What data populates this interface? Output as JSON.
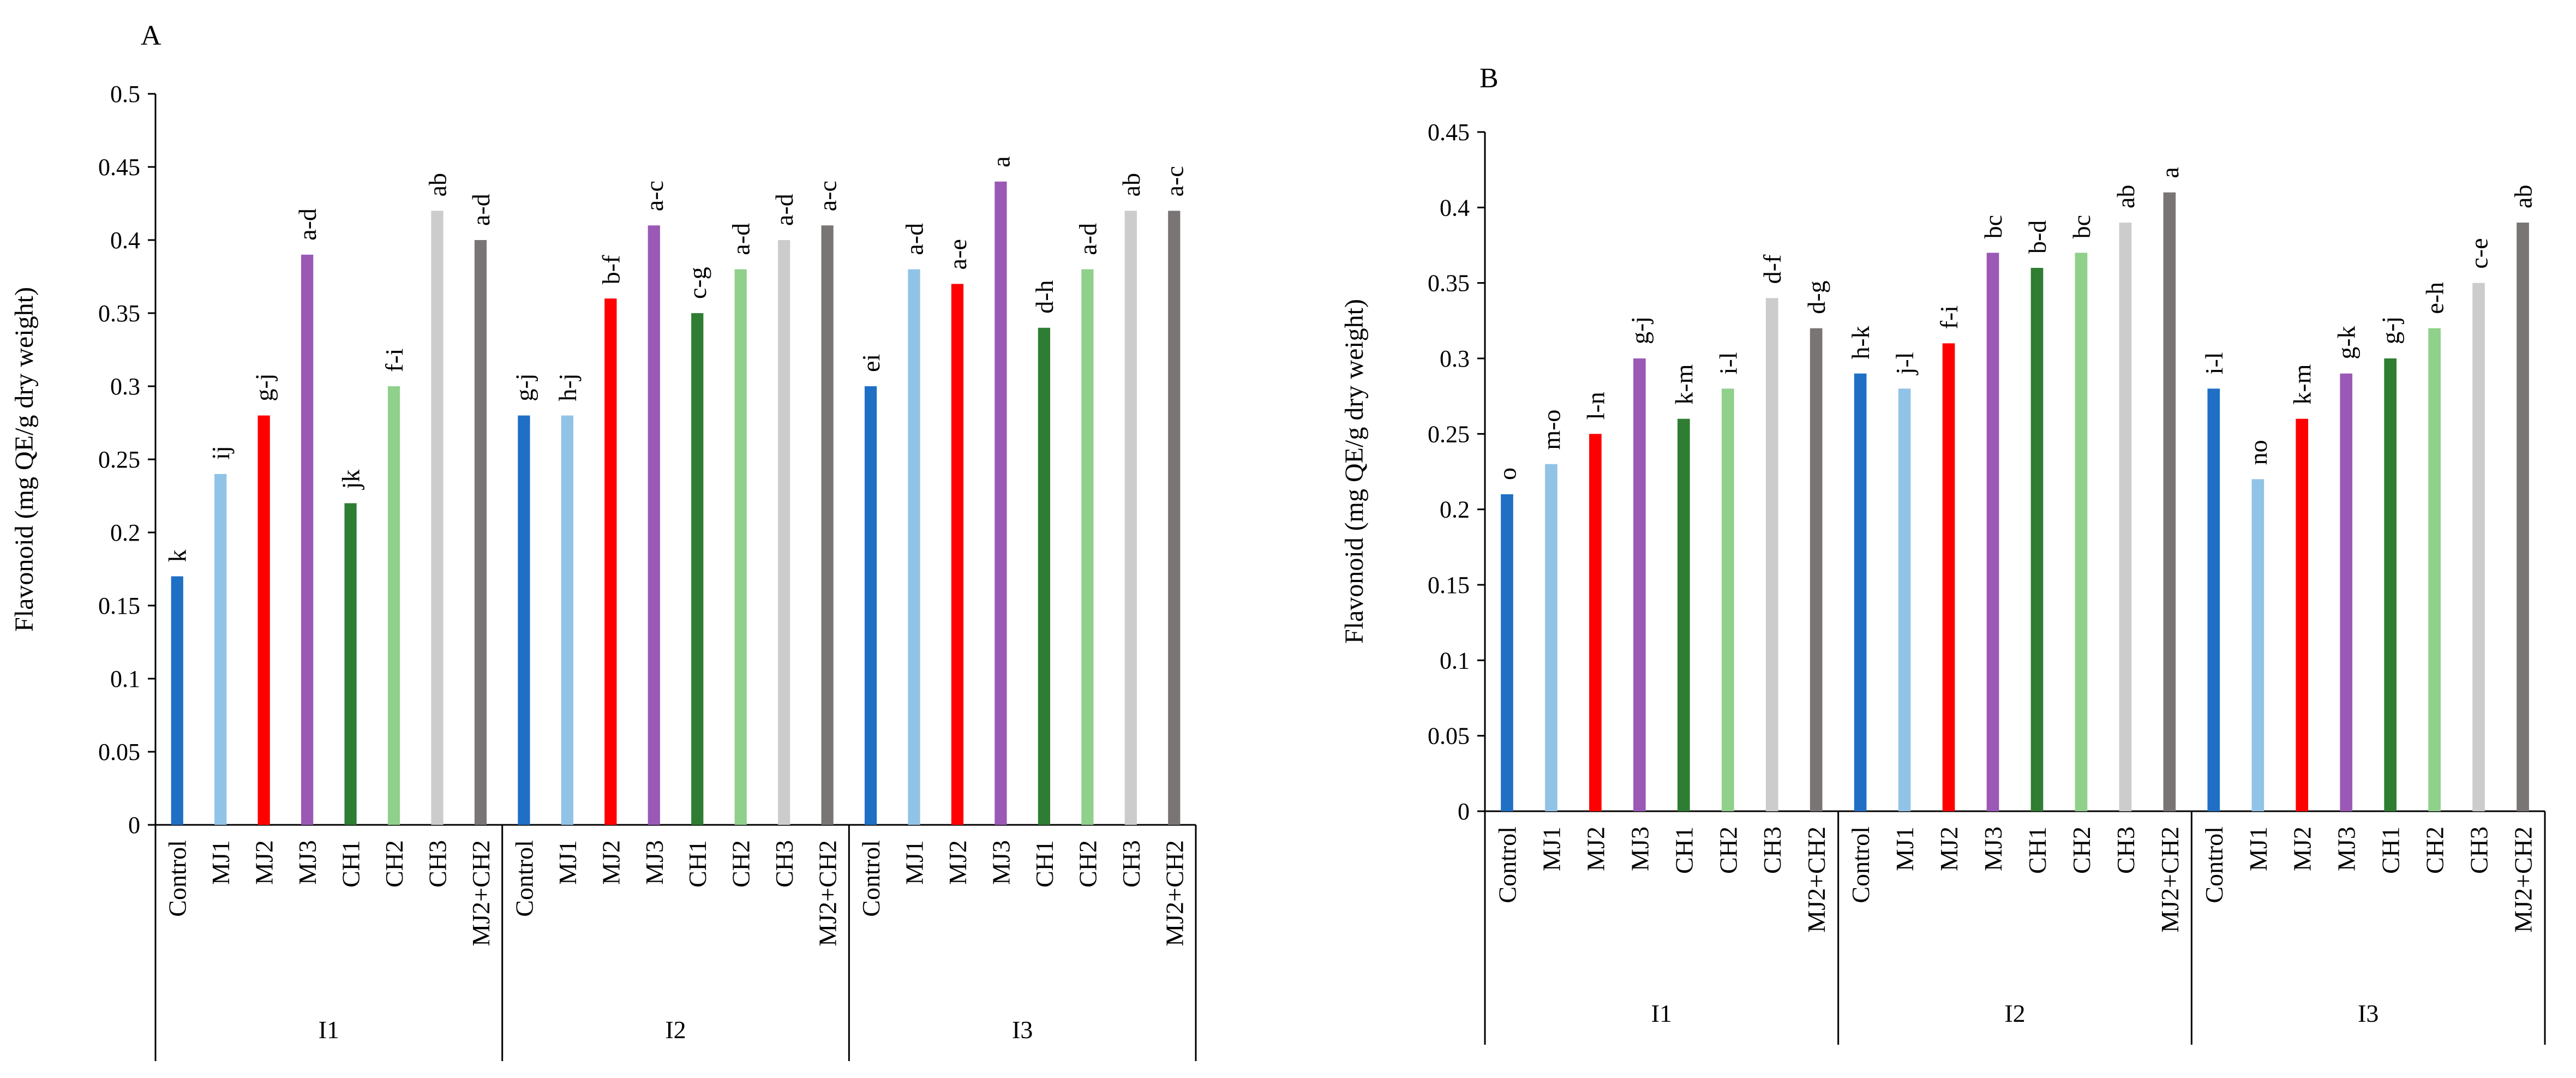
{
  "panel_labels": [
    "A",
    "B"
  ],
  "categories": [
    "Control",
    "MJ1",
    "MJ2",
    "MJ3",
    "CH1",
    "CH2",
    "CH3",
    "MJ2+CH2"
  ],
  "groups": [
    "I1",
    "I2",
    "I3"
  ],
  "colors": {
    "Control": "#1f6fc5",
    "MJ1": "#91c3e6",
    "MJ2": "#ff0000",
    "MJ3": "#9b59b6",
    "CH1": "#2e7d32",
    "CH2": "#8fd08a",
    "CH3": "#cccccc",
    "MJ2+CH2": "#7a7575"
  },
  "chart_data": [
    {
      "type": "bar",
      "panel": "A",
      "title": "A",
      "xlabel": "",
      "ylabel": "Flavonoid (mg QE/g dry weight)",
      "ylim": [
        0,
        0.5
      ],
      "yticks": [
        "0",
        "0.05",
        "0.1",
        "0.15",
        "0.2",
        "0.25",
        "0.3",
        "0.35",
        "0.4",
        "0.45",
        "0.5"
      ],
      "categories": [
        "Control",
        "MJ1",
        "MJ2",
        "MJ3",
        "CH1",
        "CH2",
        "CH3",
        "MJ2+CH2"
      ],
      "groups": [
        "I1",
        "I2",
        "I3"
      ],
      "series": [
        {
          "name": "I1",
          "values": [
            0.17,
            0.24,
            0.28,
            0.39,
            0.22,
            0.3,
            0.42,
            0.4
          ],
          "labels": [
            "k",
            "ij",
            "g-j",
            "a-d",
            "jk",
            "f-i",
            "ab",
            "a-d"
          ]
        },
        {
          "name": "I2",
          "values": [
            0.28,
            0.28,
            0.36,
            0.41,
            0.35,
            0.38,
            0.4,
            0.41
          ],
          "labels": [
            "g-j",
            "h-j",
            "b-f",
            "a-c",
            "c-g",
            "a-d",
            "a-d",
            "a-c"
          ]
        },
        {
          "name": "I3",
          "values": [
            0.3,
            0.38,
            0.37,
            0.44,
            0.34,
            0.38,
            0.42,
            0.42
          ],
          "labels": [
            "ei",
            "a-d",
            "a-e",
            "a",
            "d-h",
            "a-d",
            "ab",
            "a-c"
          ]
        }
      ]
    },
    {
      "type": "bar",
      "panel": "B",
      "title": "B",
      "xlabel": "",
      "ylabel": "Flavonoid (mg QE/g dry weight)",
      "ylim": [
        0,
        0.45
      ],
      "yticks": [
        "0",
        "0.05",
        "0.1",
        "0.15",
        "0.2",
        "0.25",
        "0.3",
        "0.35",
        "0.4",
        "0.45"
      ],
      "categories": [
        "Control",
        "MJ1",
        "MJ2",
        "MJ3",
        "CH1",
        "CH2",
        "CH3",
        "MJ2+CH2"
      ],
      "groups": [
        "I1",
        "I2",
        "I3"
      ],
      "series": [
        {
          "name": "I1",
          "values": [
            0.21,
            0.23,
            0.25,
            0.3,
            0.26,
            0.28,
            0.34,
            0.32
          ],
          "labels": [
            "o",
            "m-o",
            "l-n",
            "g-j",
            "k-m",
            "i-l",
            "d-f",
            "d-g"
          ]
        },
        {
          "name": "I2",
          "values": [
            0.29,
            0.28,
            0.31,
            0.37,
            0.36,
            0.37,
            0.39,
            0.41
          ],
          "labels": [
            "h-k",
            "j-l",
            "f-i",
            "bc",
            "b-d",
            "bc",
            "ab",
            "a"
          ]
        },
        {
          "name": "I3",
          "values": [
            0.28,
            0.22,
            0.26,
            0.29,
            0.3,
            0.32,
            0.35,
            0.39
          ],
          "labels": [
            "i-l",
            "no",
            "k-m",
            "g-k",
            "g-j",
            "e-h",
            "c-e",
            "ab"
          ]
        }
      ]
    }
  ]
}
